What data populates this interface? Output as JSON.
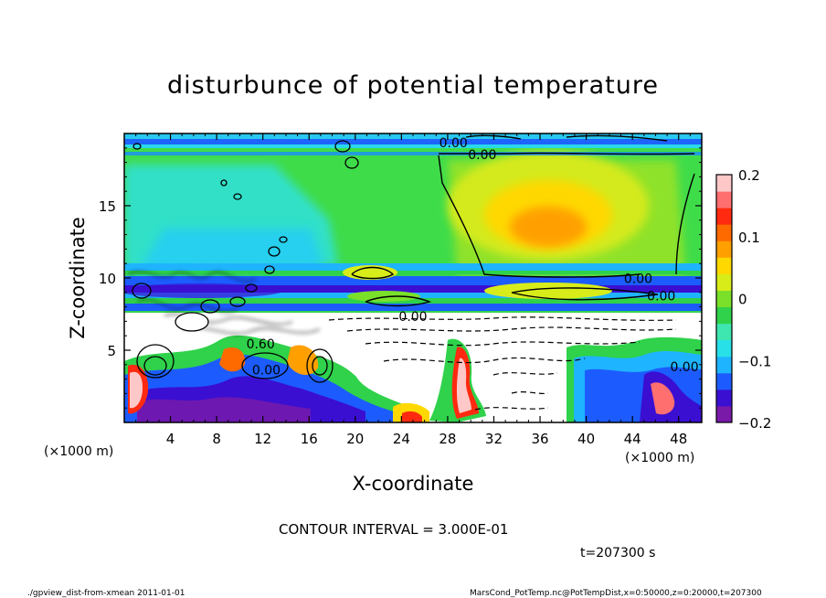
{
  "chart_data": {
    "type": "heatmap",
    "title": "disturbunce of potential temperature",
    "xlabel": "X-coordinate",
    "ylabel": "Z-coordinate",
    "x_unit_left": "(×1000 m)",
    "x_unit_right": "(×1000 m)",
    "xlim": [
      0,
      50
    ],
    "ylim": [
      0,
      20
    ],
    "x_ticks": [
      4,
      8,
      12,
      16,
      20,
      24,
      28,
      32,
      36,
      40,
      44,
      48
    ],
    "y_ticks": [
      5,
      10,
      15
    ],
    "colorbar": {
      "min": -0.2,
      "max": 0.2,
      "ticks": [
        {
          "value": 0.2,
          "label": "0.2"
        },
        {
          "value": 0.1,
          "label": "0.1"
        },
        {
          "value": 0,
          "label": "0"
        },
        {
          "value": -0.1,
          "label": "−0.1"
        },
        {
          "value": -0.2,
          "label": "−0.2"
        }
      ],
      "colors": [
        "#7a1aa8",
        "#3a0fd2",
        "#1c5cff",
        "#1fb4ff",
        "#28e0e8",
        "#3ee6b0",
        "#2fd24a",
        "#7ae02a",
        "#d8ec1a",
        "#ffd800",
        "#ffa000",
        "#ff6a00",
        "#ff2a10",
        "#ff6f6f",
        "#ffc8c8"
      ]
    },
    "contour_labels": [
      {
        "text": "0.00",
        "x": 28.5,
        "z": 19.1
      },
      {
        "text": "0.00",
        "x": 31.0,
        "z": 18.3
      },
      {
        "text": "0.00",
        "x": 44.5,
        "z": 9.7
      },
      {
        "text": "0.00",
        "x": 46.5,
        "z": 8.5
      },
      {
        "text": "0.00",
        "x": 25.0,
        "z": 7.1
      },
      {
        "text": "0.00",
        "x": 48.5,
        "z": 3.6
      },
      {
        "text": "0.60",
        "x": 11.8,
        "z": 5.2
      },
      {
        "text": "0.00",
        "x": 12.3,
        "z": 3.4
      }
    ],
    "contour_interval_text": "CONTOUR INTERVAL = 3.000E-01",
    "time_text": "t=207300 s"
  },
  "footer": {
    "left": "./gpview_dist-from-xmean  2011-01-01",
    "right": "MarsCond_PotTemp.nc@PotTempDist,x=0:50000,z=0:20000,t=207300"
  }
}
